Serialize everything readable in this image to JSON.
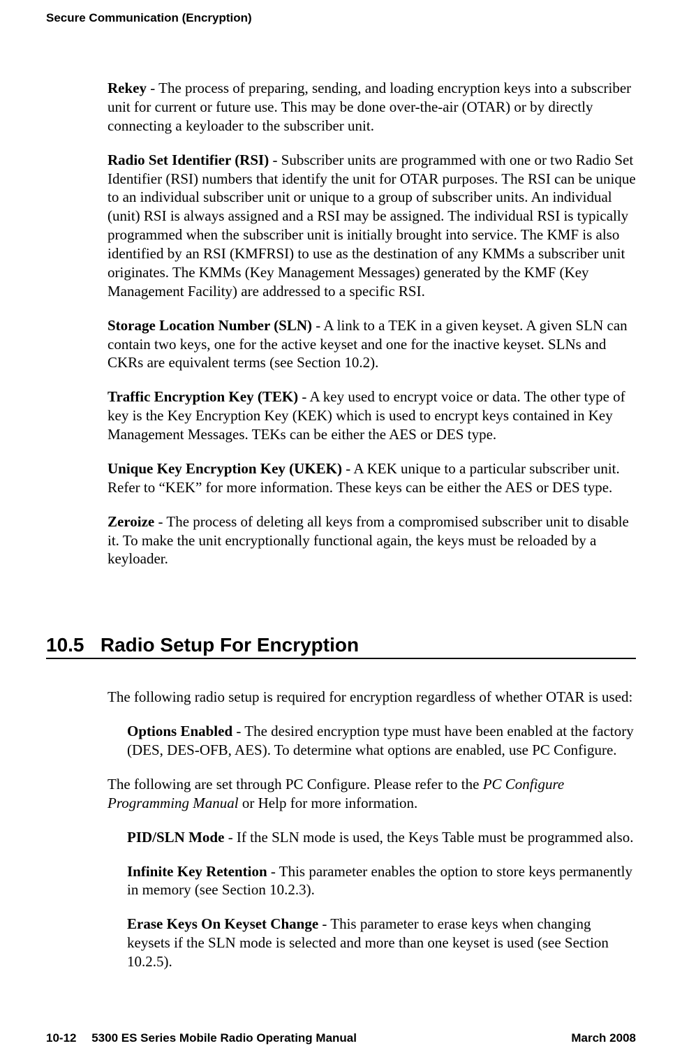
{
  "runningHead": "Secure Communication (Encryption)",
  "definitions": {
    "rekey": {
      "term": "Rekey",
      "text": " - The process of preparing, sending, and loading encryption keys into a subscriber unit for current or future use. This may be done over-the-air (OTAR) or by directly connecting a keyloader to the subscriber unit."
    },
    "rsi": {
      "term": "Radio Set Identifier (RSI)",
      "text": " - Subscriber units are programmed with one or two Radio Set Identifier (RSI) numbers that identify the unit for OTAR purposes. The RSI can be unique to an individual subscriber unit or unique to a group of subscriber units. An individual (unit) RSI is always assigned and a RSI may be assigned. The individual RSI is typically programmed when the subscriber unit is initially brought into service. The KMF is also identified by an RSI (KMFRSI) to use as the destination of any KMMs a subscriber unit originates. The KMMs (Key Management Messages) generated by the KMF (Key Management Facility) are addressed to a specific RSI."
    },
    "sln": {
      "term": "Storage Location Number (SLN)",
      "text": " - A link to a TEK in a given keyset. A given SLN can contain two keys, one for the active keyset and one for the inactive keyset. SLNs and CKRs are equivalent terms (see Section 10.2)."
    },
    "tek": {
      "term": "Traffic Encryption Key (TEK)",
      "text": " - A key used to encrypt voice or data. The other type of key is the Key Encryption Key (KEK) which is used to encrypt keys contained in Key Management Messages. TEKs can be either the AES or DES type."
    },
    "ukek": {
      "term": "Unique Key Encryption Key (UKEK)",
      "text": " - A KEK unique to a particular subscriber unit. Refer to “KEK” for more information. These keys can be either the AES or DES type."
    },
    "zeroize": {
      "term": "Zeroize",
      "text": " - The process of deleting all keys from a compromised subscriber unit to disable it. To make the unit encryptionally functional again, the keys must be reloaded by a keyloader."
    }
  },
  "section": {
    "number": "10.5",
    "title": "Radio Setup For Encryption",
    "intro1": "The following radio setup is required for encryption regardless of whether OTAR is used:",
    "optionsEnabled": {
      "term": "Options Enabled",
      "text": " - The desired encryption type must have been enabled at the factory (DES, DES-OFB, AES). To determine what options are enabled, use PC Configure."
    },
    "intro2a": "The following are set through PC Configure. Please refer to the ",
    "intro2italic": "PC Configure Programming Manual",
    "intro2b": " or Help for more information.",
    "pidSln": {
      "term": "PID/SLN Mode",
      "text": " - If the SLN mode is used, the Keys Table must be programmed also."
    },
    "infiniteKey": {
      "term": "Infinite Key Retention",
      "text": " - This parameter enables the option to store keys permanently in memory (see Section 10.2.3)."
    },
    "eraseKeys": {
      "term": "Erase Keys On Keyset Change",
      "text": " - This parameter to erase keys when changing keysets if the SLN mode is selected and more than one keyset is used (see Section 10.2.5)."
    }
  },
  "footer": {
    "left": "10-12  5300 ES Series Mobile Radio Operating Manual",
    "right": "March 2008"
  }
}
